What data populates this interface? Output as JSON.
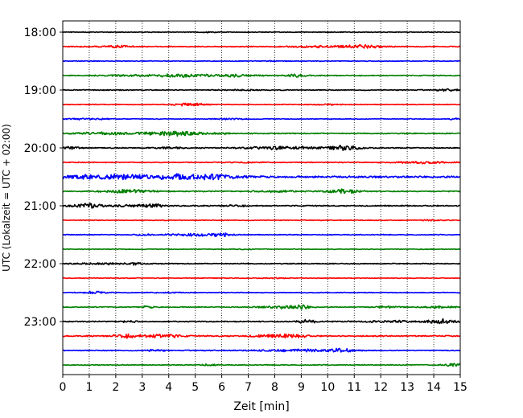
{
  "chart_data": {
    "type": "line",
    "title": "",
    "xlabel": "Zeit  [min]",
    "ylabel": "UTC (Lokalzeit = UTC + 02:00)",
    "xlim": [
      0,
      15
    ],
    "x_ticks": [
      "0",
      "1",
      "2",
      "3",
      "4",
      "5",
      "6",
      "7",
      "8",
      "9",
      "10",
      "11",
      "12",
      "13",
      "14",
      "15"
    ],
    "y_ticks": [
      "18:00",
      "19:00",
      "20:00",
      "21:00",
      "22:00",
      "23:00"
    ],
    "grid": "vertical dotted lines at each minute",
    "trace_interval_min": 15,
    "colors_cycle": [
      "#000000",
      "#ff0000",
      "#0000ff",
      "#008000"
    ],
    "traces": [
      {
        "start": "18:00",
        "color": "#000000",
        "base": 0.5,
        "bursts": [
          [
            5.5,
            0.3,
            0.6
          ]
        ]
      },
      {
        "start": "18:15",
        "color": "#ff0000",
        "base": 0.6,
        "bursts": [
          [
            2.0,
            0.8,
            1.2
          ],
          [
            9.5,
            1.0,
            1.0
          ],
          [
            11.3,
            0.8,
            2.2
          ]
        ]
      },
      {
        "start": "18:30",
        "color": "#0000ff",
        "base": 0.5,
        "bursts": [
          [
            8.0,
            0.5,
            0.5
          ]
        ]
      },
      {
        "start": "18:45",
        "color": "#008000",
        "base": 0.6,
        "bursts": [
          [
            2.5,
            1.0,
            1.0
          ],
          [
            4.5,
            1.2,
            1.6
          ],
          [
            6.5,
            0.8,
            1.6
          ],
          [
            8.8,
            0.4,
            1.8
          ]
        ]
      },
      {
        "start": "19:00",
        "color": "#000000",
        "base": 0.6,
        "bursts": [
          [
            6.8,
            0.6,
            0.6
          ],
          [
            14.5,
            0.4,
            1.2
          ]
        ]
      },
      {
        "start": "19:15",
        "color": "#ff0000",
        "base": 0.5,
        "bursts": [
          [
            4.8,
            0.6,
            1.8
          ],
          [
            10.0,
            0.5,
            0.6
          ]
        ]
      },
      {
        "start": "19:30",
        "color": "#0000ff",
        "base": 0.5,
        "bursts": [
          [
            1.0,
            0.8,
            0.8
          ],
          [
            6.3,
            0.6,
            0.6
          ],
          [
            14.8,
            0.3,
            0.8
          ]
        ]
      },
      {
        "start": "19:45",
        "color": "#008000",
        "base": 0.7,
        "bursts": [
          [
            1.5,
            1.0,
            1.5
          ],
          [
            3.5,
            1.0,
            1.2
          ],
          [
            4.5,
            0.8,
            2.2
          ],
          [
            6.0,
            0.5,
            0.8
          ]
        ]
      },
      {
        "start": "20:00",
        "color": "#000000",
        "base": 0.7,
        "bursts": [
          [
            0.3,
            0.4,
            1.4
          ],
          [
            4.0,
            0.5,
            1.0
          ],
          [
            8.3,
            1.2,
            2.0
          ],
          [
            10.6,
            0.6,
            2.8
          ]
        ]
      },
      {
        "start": "20:15",
        "color": "#ff0000",
        "base": 0.6,
        "bursts": [
          [
            7.0,
            0.5,
            0.5
          ],
          [
            13.5,
            1.0,
            1.2
          ]
        ]
      },
      {
        "start": "20:30",
        "color": "#0000ff",
        "base": 1.2,
        "bursts": [
          [
            2.0,
            2.2,
            2.8
          ],
          [
            5.3,
            1.4,
            3.0
          ]
        ]
      },
      {
        "start": "20:45",
        "color": "#008000",
        "base": 0.7,
        "bursts": [
          [
            2.5,
            1.0,
            2.0
          ],
          [
            8.0,
            0.8,
            1.2
          ],
          [
            10.6,
            0.6,
            2.8
          ]
        ]
      },
      {
        "start": "21:00",
        "color": "#000000",
        "base": 0.7,
        "bursts": [
          [
            1.0,
            0.6,
            2.8
          ],
          [
            2.8,
            0.8,
            1.6
          ],
          [
            3.5,
            0.2,
            2.4
          ],
          [
            6.5,
            0.5,
            0.8
          ]
        ]
      },
      {
        "start": "21:15",
        "color": "#ff0000",
        "base": 0.5,
        "bursts": [
          [
            14.0,
            0.5,
            0.6
          ]
        ]
      },
      {
        "start": "21:30",
        "color": "#0000ff",
        "base": 0.6,
        "bursts": [
          [
            3.0,
            0.3,
            1.2
          ],
          [
            5.0,
            1.0,
            1.5
          ],
          [
            6.0,
            0.3,
            2.0
          ]
        ]
      },
      {
        "start": "21:45",
        "color": "#008000",
        "base": 0.5,
        "bursts": [
          [
            7.0,
            0.5,
            0.4
          ]
        ]
      },
      {
        "start": "22:00",
        "color": "#000000",
        "base": 0.6,
        "bursts": [
          [
            1.5,
            1.0,
            1.0
          ],
          [
            2.7,
            0.4,
            1.0
          ]
        ]
      },
      {
        "start": "22:15",
        "color": "#ff0000",
        "base": 0.5,
        "bursts": [
          [
            8.0,
            0.5,
            0.4
          ]
        ]
      },
      {
        "start": "22:30",
        "color": "#0000ff",
        "base": 0.5,
        "bursts": [
          [
            1.2,
            0.4,
            1.6
          ],
          [
            4.0,
            0.5,
            0.6
          ]
        ]
      },
      {
        "start": "22:45",
        "color": "#008000",
        "base": 0.6,
        "bursts": [
          [
            3.2,
            0.3,
            1.2
          ],
          [
            8.3,
            0.8,
            1.6
          ],
          [
            9.0,
            0.3,
            2.6
          ],
          [
            12.2,
            0.4,
            1.4
          ],
          [
            14.2,
            0.6,
            1.4
          ]
        ]
      },
      {
        "start": "23:00",
        "color": "#000000",
        "base": 0.7,
        "bursts": [
          [
            2.5,
            0.3,
            1.2
          ],
          [
            9.2,
            0.4,
            2.4
          ],
          [
            12.5,
            1.0,
            1.2
          ],
          [
            14.3,
            0.5,
            2.8
          ]
        ]
      },
      {
        "start": "23:15",
        "color": "#ff0000",
        "base": 0.8,
        "bursts": [
          [
            2.4,
            0.5,
            2.2
          ],
          [
            3.8,
            0.6,
            2.6
          ],
          [
            7.5,
            0.5,
            1.2
          ],
          [
            8.3,
            0.4,
            2.0
          ],
          [
            9.0,
            0.3,
            1.8
          ]
        ]
      },
      {
        "start": "23:30",
        "color": "#0000ff",
        "base": 0.6,
        "bursts": [
          [
            3.5,
            0.3,
            1.4
          ],
          [
            9.0,
            1.5,
            1.4
          ],
          [
            10.5,
            0.5,
            1.8
          ]
        ]
      },
      {
        "start": "23:45",
        "color": "#008000",
        "base": 0.6,
        "bursts": [
          [
            5.5,
            0.3,
            1.0
          ],
          [
            14.8,
            0.4,
            2.2
          ]
        ]
      }
    ]
  }
}
